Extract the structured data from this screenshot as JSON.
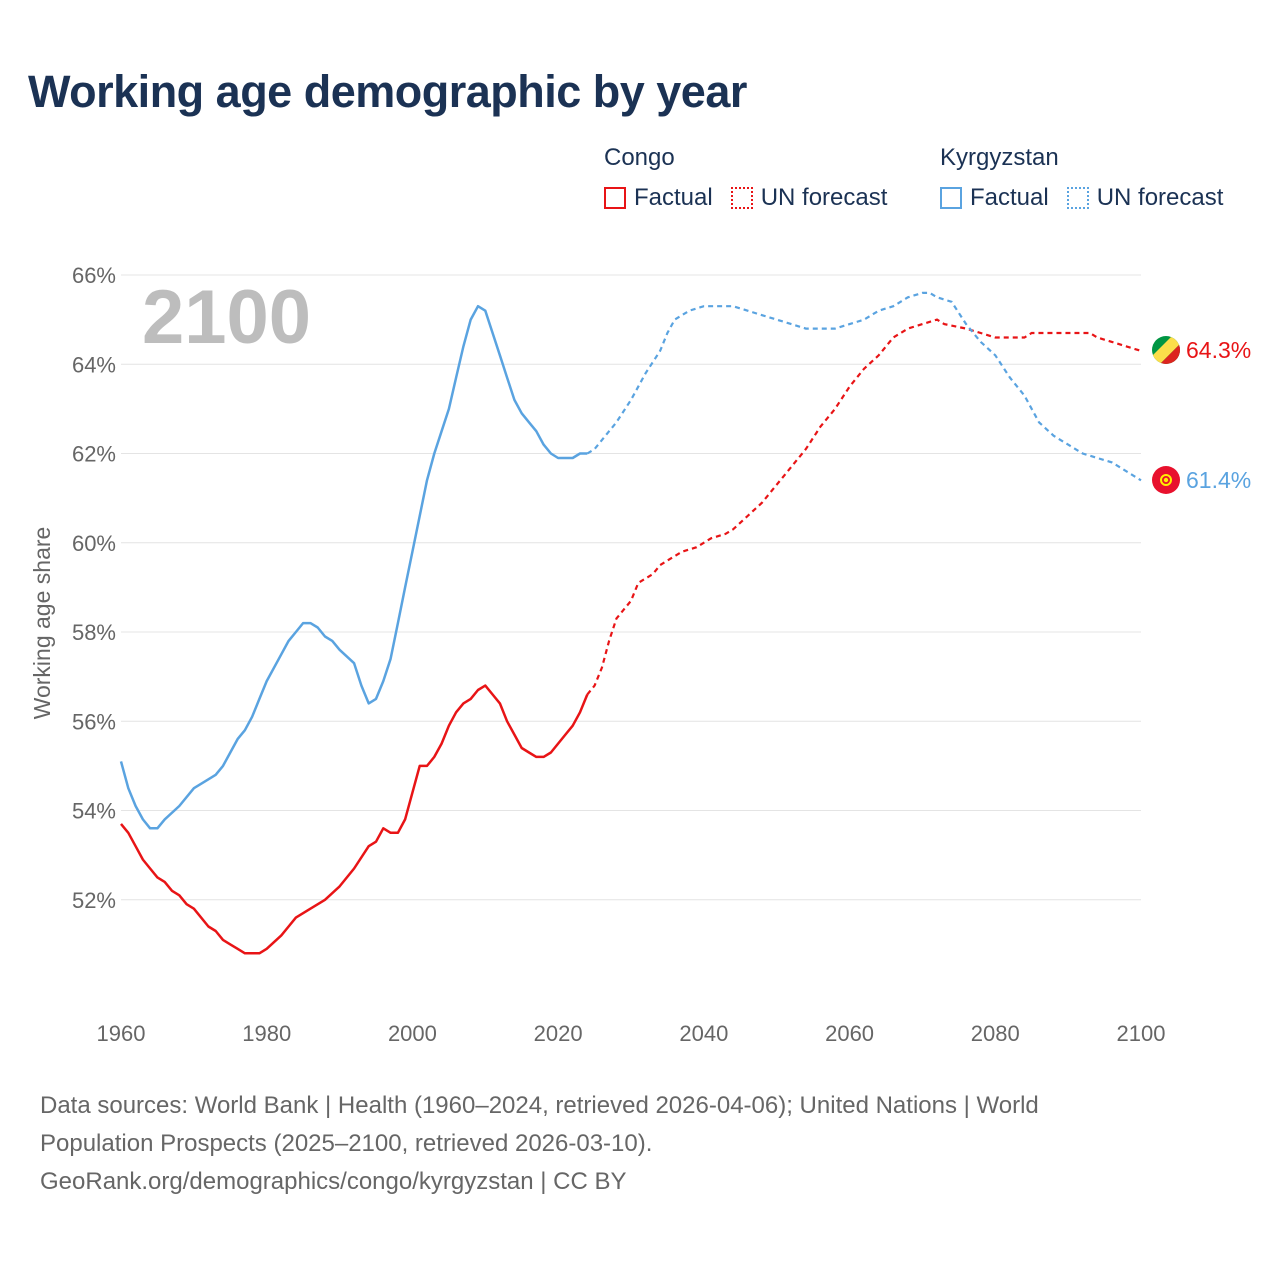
{
  "title": "Working age demographic by year",
  "legend": {
    "groups": [
      {
        "country": "Congo",
        "color": "#e81416",
        "factual_label": "Factual",
        "forecast_label": "UN forecast"
      },
      {
        "country": "Kyrgyzstan",
        "color": "#5aa3e0",
        "factual_label": "Factual",
        "forecast_label": "UN forecast"
      }
    ]
  },
  "source": {
    "line1": "Data sources: World Bank | Health (1960–2024, retrieved 2026-04-06); United Nations | World",
    "line2": "Population Prospects (2025–2100, retrieved 2026-03-10).",
    "line3": "GeoRank.org/demographics/congo/kyrgyzstan | CC BY"
  },
  "chart_data": {
    "type": "line",
    "title": "Working age demographic by year",
    "year_watermark": "2100",
    "xlabel": "",
    "ylabel": "Working age share",
    "xlim": [
      1960,
      2100
    ],
    "ylim": [
      50,
      66
    ],
    "x_ticks": [
      1960,
      1980,
      2000,
      2020,
      2040,
      2060,
      2080,
      2100
    ],
    "y_ticks": [
      52,
      54,
      56,
      58,
      60,
      62,
      64,
      66
    ],
    "y_tick_labels": [
      "52%",
      "54%",
      "56%",
      "58%",
      "60%",
      "62%",
      "64%",
      "66%"
    ],
    "grid": true,
    "factual_until": 2024,
    "series": [
      {
        "name": "Congo",
        "color": "#e81416",
        "end_label": "64.3%",
        "flag": [
          "#009543",
          "#fbde4a",
          "#dc241f"
        ],
        "points": [
          [
            1960,
            53.7
          ],
          [
            1961,
            53.5
          ],
          [
            1962,
            53.2
          ],
          [
            1963,
            52.9
          ],
          [
            1964,
            52.7
          ],
          [
            1965,
            52.5
          ],
          [
            1966,
            52.4
          ],
          [
            1967,
            52.2
          ],
          [
            1968,
            52.1
          ],
          [
            1969,
            51.9
          ],
          [
            1970,
            51.8
          ],
          [
            1972,
            51.4
          ],
          [
            1973,
            51.3
          ],
          [
            1974,
            51.1
          ],
          [
            1975,
            51.0
          ],
          [
            1976,
            50.9
          ],
          [
            1977,
            50.8
          ],
          [
            1979,
            50.8
          ],
          [
            1980,
            50.9
          ],
          [
            1982,
            51.2
          ],
          [
            1983,
            51.4
          ],
          [
            1984,
            51.6
          ],
          [
            1986,
            51.8
          ],
          [
            1988,
            52.0
          ],
          [
            1990,
            52.3
          ],
          [
            1992,
            52.7
          ],
          [
            1994,
            53.2
          ],
          [
            1995,
            53.3
          ],
          [
            1996,
            53.6
          ],
          [
            1997,
            53.5
          ],
          [
            1998,
            53.5
          ],
          [
            1999,
            53.8
          ],
          [
            2000,
            54.4
          ],
          [
            2001,
            55.0
          ],
          [
            2002,
            55.0
          ],
          [
            2003,
            55.2
          ],
          [
            2004,
            55.5
          ],
          [
            2005,
            55.9
          ],
          [
            2006,
            56.2
          ],
          [
            2007,
            56.4
          ],
          [
            2008,
            56.5
          ],
          [
            2009,
            56.7
          ],
          [
            2010,
            56.8
          ],
          [
            2011,
            56.6
          ],
          [
            2012,
            56.4
          ],
          [
            2013,
            56.0
          ],
          [
            2014,
            55.7
          ],
          [
            2015,
            55.4
          ],
          [
            2016,
            55.3
          ],
          [
            2017,
            55.2
          ],
          [
            2018,
            55.2
          ],
          [
            2019,
            55.3
          ],
          [
            2020,
            55.5
          ],
          [
            2021,
            55.7
          ],
          [
            2022,
            55.9
          ],
          [
            2023,
            56.2
          ],
          [
            2024,
            56.6
          ],
          [
            2025,
            56.8
          ],
          [
            2026,
            57.2
          ],
          [
            2027,
            57.8
          ],
          [
            2028,
            58.3
          ],
          [
            2030,
            58.7
          ],
          [
            2031,
            59.1
          ],
          [
            2033,
            59.3
          ],
          [
            2034,
            59.5
          ],
          [
            2036,
            59.7
          ],
          [
            2037,
            59.8
          ],
          [
            2039,
            59.9
          ],
          [
            2041,
            60.1
          ],
          [
            2043,
            60.2
          ],
          [
            2044,
            60.3
          ],
          [
            2046,
            60.6
          ],
          [
            2048,
            60.9
          ],
          [
            2050,
            61.3
          ],
          [
            2052,
            61.7
          ],
          [
            2054,
            62.1
          ],
          [
            2056,
            62.6
          ],
          [
            2058,
            63.0
          ],
          [
            2060,
            63.5
          ],
          [
            2062,
            63.9
          ],
          [
            2064,
            64.2
          ],
          [
            2066,
            64.6
          ],
          [
            2068,
            64.8
          ],
          [
            2070,
            64.9
          ],
          [
            2072,
            65.0
          ],
          [
            2073,
            64.9
          ],
          [
            2076,
            64.8
          ],
          [
            2078,
            64.7
          ],
          [
            2080,
            64.6
          ],
          [
            2084,
            64.6
          ],
          [
            2085,
            64.7
          ],
          [
            2093,
            64.7
          ],
          [
            2094,
            64.6
          ],
          [
            2096,
            64.5
          ],
          [
            2098,
            64.4
          ],
          [
            2100,
            64.3
          ]
        ]
      },
      {
        "name": "Kyrgyzstan",
        "color": "#5aa3e0",
        "end_label": "61.4%",
        "flag": [
          "#e8112d",
          "#ffef00"
        ],
        "points": [
          [
            1960,
            55.1
          ],
          [
            1961,
            54.5
          ],
          [
            1962,
            54.1
          ],
          [
            1963,
            53.8
          ],
          [
            1964,
            53.6
          ],
          [
            1965,
            53.6
          ],
          [
            1966,
            53.8
          ],
          [
            1968,
            54.1
          ],
          [
            1970,
            54.5
          ],
          [
            1972,
            54.7
          ],
          [
            1973,
            54.8
          ],
          [
            1974,
            55.0
          ],
          [
            1975,
            55.3
          ],
          [
            1976,
            55.6
          ],
          [
            1977,
            55.8
          ],
          [
            1978,
            56.1
          ],
          [
            1979,
            56.5
          ],
          [
            1980,
            56.9
          ],
          [
            1982,
            57.5
          ],
          [
            1983,
            57.8
          ],
          [
            1984,
            58.0
          ],
          [
            1985,
            58.2
          ],
          [
            1986,
            58.2
          ],
          [
            1987,
            58.1
          ],
          [
            1988,
            57.9
          ],
          [
            1989,
            57.8
          ],
          [
            1990,
            57.6
          ],
          [
            1992,
            57.3
          ],
          [
            1993,
            56.8
          ],
          [
            1994,
            56.4
          ],
          [
            1995,
            56.5
          ],
          [
            1996,
            56.9
          ],
          [
            1997,
            57.4
          ],
          [
            1998,
            58.2
          ],
          [
            1999,
            59.0
          ],
          [
            2000,
            59.8
          ],
          [
            2001,
            60.6
          ],
          [
            2002,
            61.4
          ],
          [
            2003,
            62.0
          ],
          [
            2004,
            62.5
          ],
          [
            2005,
            63.0
          ],
          [
            2006,
            63.7
          ],
          [
            2007,
            64.4
          ],
          [
            2008,
            65.0
          ],
          [
            2009,
            65.3
          ],
          [
            2010,
            65.2
          ],
          [
            2011,
            64.7
          ],
          [
            2012,
            64.2
          ],
          [
            2013,
            63.7
          ],
          [
            2014,
            63.2
          ],
          [
            2015,
            62.9
          ],
          [
            2016,
            62.7
          ],
          [
            2017,
            62.5
          ],
          [
            2018,
            62.2
          ],
          [
            2019,
            62.0
          ],
          [
            2020,
            61.9
          ],
          [
            2022,
            61.9
          ],
          [
            2023,
            62.0
          ],
          [
            2024,
            62.0
          ],
          [
            2025,
            62.1
          ],
          [
            2026,
            62.3
          ],
          [
            2028,
            62.7
          ],
          [
            2030,
            63.2
          ],
          [
            2032,
            63.8
          ],
          [
            2034,
            64.3
          ],
          [
            2035,
            64.7
          ],
          [
            2036,
            65.0
          ],
          [
            2038,
            65.2
          ],
          [
            2040,
            65.3
          ],
          [
            2044,
            65.3
          ],
          [
            2046,
            65.2
          ],
          [
            2048,
            65.1
          ],
          [
            2050,
            65.0
          ],
          [
            2052,
            64.9
          ],
          [
            2054,
            64.8
          ],
          [
            2058,
            64.8
          ],
          [
            2060,
            64.9
          ],
          [
            2062,
            65.0
          ],
          [
            2064,
            65.2
          ],
          [
            2066,
            65.3
          ],
          [
            2068,
            65.5
          ],
          [
            2070,
            65.6
          ],
          [
            2071,
            65.6
          ],
          [
            2072,
            65.5
          ],
          [
            2074,
            65.4
          ],
          [
            2076,
            64.9
          ],
          [
            2078,
            64.5
          ],
          [
            2080,
            64.2
          ],
          [
            2082,
            63.7
          ],
          [
            2084,
            63.3
          ],
          [
            2086,
            62.7
          ],
          [
            2088,
            62.4
          ],
          [
            2090,
            62.2
          ],
          [
            2092,
            62.0
          ],
          [
            2094,
            61.9
          ],
          [
            2096,
            61.8
          ],
          [
            2098,
            61.6
          ],
          [
            2100,
            61.4
          ]
        ]
      }
    ]
  }
}
